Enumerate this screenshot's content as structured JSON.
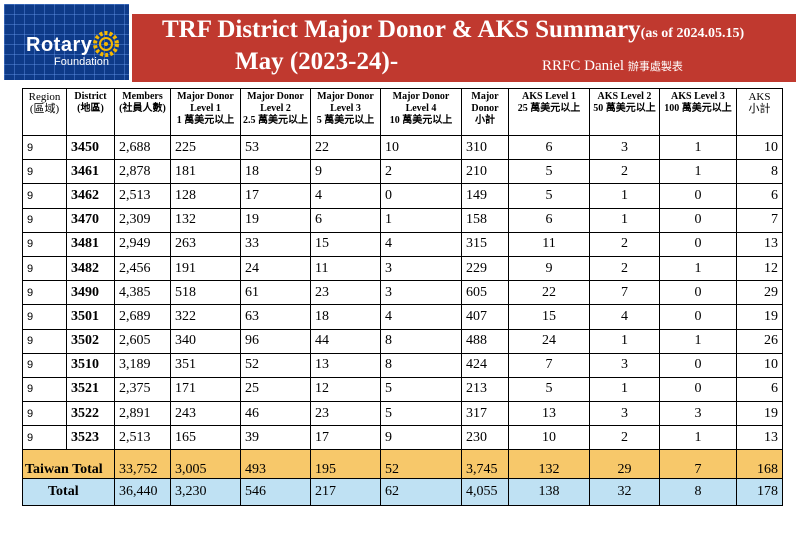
{
  "logo": {
    "line1": "The",
    "line2": "Rotary",
    "line3": "Foundation"
  },
  "banner": {
    "title": "TRF District Major Donor & AKS Summary",
    "as_of": "(as of 2024.05.15)",
    "period": "May (2023-24)-",
    "author": "RRFC Daniel",
    "author_note": "辦事處製表"
  },
  "headers": [
    [
      "Region",
      "(區域)"
    ],
    [
      "District",
      "(地區)"
    ],
    [
      "Members",
      "(社員人數)"
    ],
    [
      "Major Donor",
      "Level 1",
      "1 萬美元以上"
    ],
    [
      "Major Donor",
      "Level 2",
      "2.5 萬美元以上"
    ],
    [
      "Major Donor",
      "Level 3",
      "5 萬美元以上"
    ],
    [
      "Major Donor",
      "Level 4",
      "10 萬美元以上"
    ],
    [
      "Major",
      "Donor",
      "小計"
    ],
    [
      "AKS Level 1",
      "25 萬美元以上"
    ],
    [
      "AKS Level 2",
      "50 萬美元以上"
    ],
    [
      "AKS Level 3",
      "100 萬美元以上"
    ],
    [
      "AKS",
      "小計"
    ]
  ],
  "rows": [
    [
      "9",
      "3450",
      "2,688",
      "225",
      "53",
      "22",
      "10",
      "310",
      "6",
      "3",
      "1",
      "10"
    ],
    [
      "9",
      "3461",
      "2,878",
      "181",
      "18",
      "9",
      "2",
      "210",
      "5",
      "2",
      "1",
      "8"
    ],
    [
      "9",
      "3462",
      "2,513",
      "128",
      "17",
      "4",
      "0",
      "149",
      "5",
      "1",
      "0",
      "6"
    ],
    [
      "9",
      "3470",
      "2,309",
      "132",
      "19",
      "6",
      "1",
      "158",
      "6",
      "1",
      "0",
      "7"
    ],
    [
      "9",
      "3481",
      "2,949",
      "263",
      "33",
      "15",
      "4",
      "315",
      "11",
      "2",
      "0",
      "13"
    ],
    [
      "9",
      "3482",
      "2,456",
      "191",
      "24",
      "11",
      "3",
      "229",
      "9",
      "2",
      "1",
      "12"
    ],
    [
      "9",
      "3490",
      "4,385",
      "518",
      "61",
      "23",
      "3",
      "605",
      "22",
      "7",
      "0",
      "29"
    ],
    [
      "9",
      "3501",
      "2,689",
      "322",
      "63",
      "18",
      "4",
      "407",
      "15",
      "4",
      "0",
      "19"
    ],
    [
      "9",
      "3502",
      "2,605",
      "340",
      "96",
      "44",
      "8",
      "488",
      "24",
      "1",
      "1",
      "26"
    ],
    [
      "9",
      "3510",
      "3,189",
      "351",
      "52",
      "13",
      "8",
      "424",
      "7",
      "3",
      "0",
      "10"
    ],
    [
      "9",
      "3521",
      "2,375",
      "171",
      "25",
      "12",
      "5",
      "213",
      "5",
      "1",
      "0",
      "6"
    ],
    [
      "9",
      "3522",
      "2,891",
      "243",
      "46",
      "23",
      "5",
      "317",
      "13",
      "3",
      "3",
      "19"
    ],
    [
      "9",
      "3523",
      "2,513",
      "165",
      "39",
      "17",
      "9",
      "230",
      "10",
      "2",
      "1",
      "13"
    ]
  ],
  "taiwan_total": [
    "Taiwan Total",
    "33,752",
    "3,005",
    "493",
    "195",
    "52",
    "3,745",
    "132",
    "29",
    "7",
    "168"
  ],
  "grand_total": [
    "Total",
    "36,440",
    "3,230",
    "546",
    "217",
    "62",
    "4,055",
    "138",
    "32",
    "8",
    "178"
  ]
}
